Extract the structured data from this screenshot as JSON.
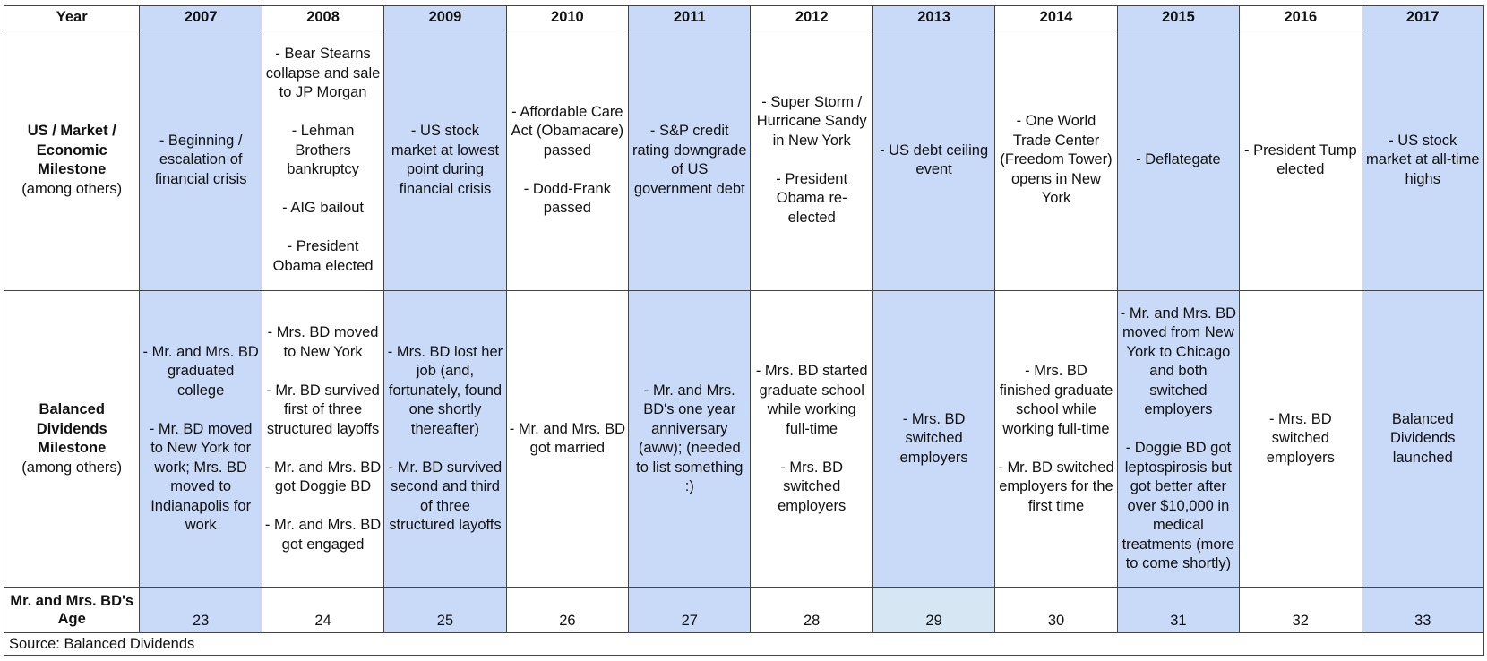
{
  "header": {
    "year_label": "Year",
    "years": [
      "2007",
      "2008",
      "2009",
      "2010",
      "2011",
      "2012",
      "2013",
      "2014",
      "2015",
      "2016",
      "2017"
    ]
  },
  "row_market": {
    "label": "US / Market / Economic Milestone",
    "sublabel": "(among others)",
    "cells": [
      "- Beginning / escalation of financial crisis",
      "- Bear Stearns collapse and sale to JP Morgan\n\n- Lehman Brothers bankruptcy\n\n- AIG bailout\n\n- President Obama elected",
      "- US stock market at lowest point during financial crisis",
      "- Affordable Care Act (Obamacare) passed\n\n- Dodd-Frank passed",
      "- S&P credit rating downgrade of US government debt",
      "- Super Storm / Hurricane Sandy in New York\n\n- President Obama re-elected",
      "- US debt ceiling event",
      "- One World Trade Center (Freedom Tower) opens in New York",
      "- Deflategate",
      "- President Tump elected",
      "- US stock market at all-time highs"
    ]
  },
  "row_bd": {
    "label": "Balanced Dividends Milestone",
    "sublabel": "(among others)",
    "cells": [
      "- Mr. and Mrs. BD graduated college\n\n- Mr. BD moved to New York for work; Mrs. BD moved to Indianapolis for work",
      "- Mrs. BD moved to New York\n\n- Mr. BD survived first of three structured layoffs\n\n- Mr. and Mrs. BD got Doggie BD\n\n- Mr. and Mrs. BD got engaged",
      "- Mrs. BD lost her job (and, fortunately, found one shortly thereafter)\n\n- Mr. BD survived second and third of three structured layoffs",
      "- Mr. and Mrs. BD got married",
      "- Mr. and Mrs. BD's one year anniversary (aww); (needed to list something :)",
      "- Mrs. BD started graduate school while working full-time\n\n- Mrs. BD switched employers",
      "- Mrs. BD switched employers",
      "- Mrs. BD finished graduate school while working full-time\n\n- Mr. BD switched employers for the first time",
      "- Mr. and Mrs. BD moved from New York to Chicago and both switched employers\n\n- Doggie BD got leptospirosis but got better after over $10,000 in medical treatments (more to come shortly)",
      "- Mrs. BD switched employers",
      "Balanced Dividends launched"
    ]
  },
  "row_age": {
    "label": "Mr. and Mrs. BD's Age",
    "values": [
      "23",
      "24",
      "25",
      "26",
      "27",
      "28",
      "29",
      "30",
      "31",
      "32",
      "33"
    ]
  },
  "source": "Source: Balanced Dividends",
  "colors": {
    "highlight_blue": "#c9daf8",
    "age_2013_blue": "#d6e6f3",
    "border": "#444444"
  }
}
